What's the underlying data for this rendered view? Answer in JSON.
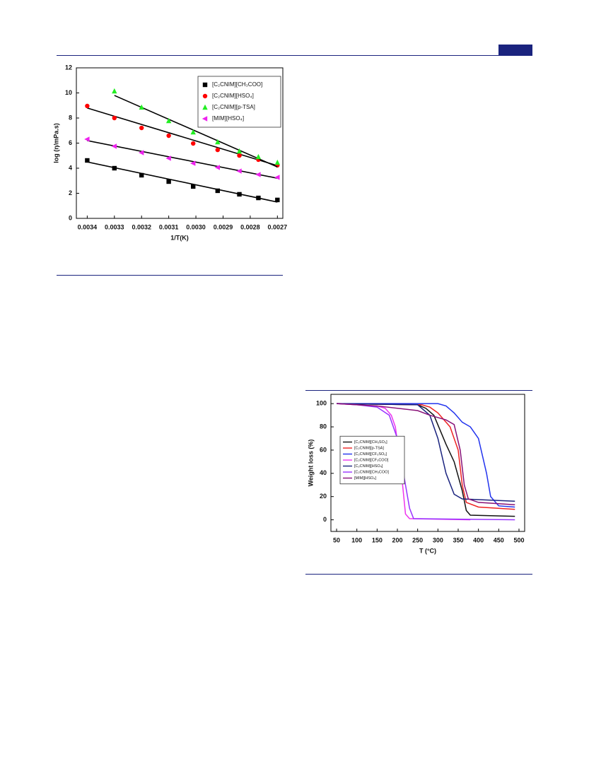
{
  "chart_data": [
    {
      "type": "scatter",
      "x_label": "1/T(K)",
      "y_label": "log (η/mPa.s)",
      "xlim": [
        0.00344,
        0.00268
      ],
      "ylim": [
        0,
        12
      ],
      "xticks": [
        0.0034,
        0.0033,
        0.0032,
        0.0031,
        {
          "value": 0.003,
          "label": "0.0030"
        },
        0.0029,
        0.0028,
        0.0027
      ],
      "yticks": [
        0,
        2,
        4,
        6,
        8,
        10,
        12
      ],
      "legend": "upper right",
      "x": [
        0.0034,
        0.0033,
        0.0032,
        0.0031,
        0.00301,
        0.00292,
        0.00284,
        0.00277,
        0.0027
      ],
      "series": [
        {
          "name": "[C₂CNIM][CH₃COO]",
          "color": "#000000",
          "marker": "square",
          "values": [
            4.62,
            4.0,
            3.44,
            2.93,
            2.54,
            2.2,
            1.92,
            1.63,
            1.47
          ],
          "fit": {
            "x": [
              0.0034,
              0.0027
            ],
            "values": [
              4.5,
              1.3
            ]
          }
        },
        {
          "name": "[C₂CNIM][HSO₄]",
          "color": "#ff0000",
          "marker": "circle",
          "values": [
            8.96,
            8.0,
            7.21,
            6.59,
            5.97,
            5.46,
            5.01,
            4.68,
            4.23
          ],
          "fit": {
            "x": [
              0.0034,
              0.0027
            ],
            "values": [
              8.8,
              4.2
            ]
          }
        },
        {
          "name": "[C₂CNIM][p-TSA]",
          "color": "#22ee22",
          "marker": "triangle-up",
          "values": [
            null,
            10.14,
            8.85,
            7.77,
            6.87,
            6.08,
            5.35,
            4.9,
            4.45
          ],
          "fit": {
            "x": [
              0.0033,
              0.0027
            ],
            "values": [
              9.8,
              4.1
            ]
          }
        },
        {
          "name": "[MIM][HSO₄]",
          "color": "#ee22ee",
          "marker": "triangle-left",
          "values": [
            6.31,
            5.75,
            5.24,
            4.79,
            4.39,
            4.06,
            3.77,
            3.49,
            3.27
          ],
          "fit": {
            "x": [
              0.0034,
              0.0027
            ],
            "values": [
              6.2,
              3.2
            ]
          }
        }
      ]
    },
    {
      "type": "line",
      "x_label": "T (°C)",
      "y_label": "Weight loss (%)",
      "xlim": [
        36,
        514
      ],
      "ylim": [
        -10,
        108
      ],
      "xticks": [
        50,
        100,
        150,
        200,
        250,
        300,
        350,
        400,
        450,
        500
      ],
      "yticks": [
        0,
        20,
        40,
        60,
        80,
        100
      ],
      "legend": "center left",
      "series": [
        {
          "name": "[C₂CNIM][CH₃SO₃]",
          "color": "#111111",
          "x": [
            50,
            250,
            270,
            290,
            320,
            340,
            360,
            370,
            380,
            490
          ],
          "values": [
            100,
            99,
            96,
            90,
            65,
            50,
            25,
            8,
            4,
            3
          ]
        },
        {
          "name": "[C₂CNIM][p-TSA]",
          "color": "#ee2222",
          "x": [
            50,
            260,
            280,
            300,
            330,
            350,
            360,
            370,
            400,
            490
          ],
          "values": [
            100,
            99,
            97,
            92,
            80,
            60,
            30,
            15,
            11,
            9
          ]
        },
        {
          "name": "[C₂CNIM][CF₃SO₃]",
          "color": "#2233ee",
          "x": [
            50,
            300,
            320,
            340,
            360,
            380,
            400,
            420,
            430,
            450,
            490
          ],
          "values": [
            100,
            100,
            98,
            92,
            84,
            80,
            70,
            40,
            20,
            12,
            11
          ]
        },
        {
          "name": "[C₂CNIM][CF₃COO]",
          "color": "#ee33ee",
          "x": [
            50,
            150,
            170,
            185,
            195,
            205,
            210,
            220,
            230,
            380
          ],
          "values": [
            100,
            98,
            96,
            90,
            80,
            55,
            40,
            5,
            1,
            0
          ]
        },
        {
          "name": "[C₂CNIM][HSO₄]",
          "color": "#1a237e",
          "x": [
            50,
            250,
            280,
            300,
            320,
            340,
            360,
            490
          ],
          "values": [
            100,
            99,
            90,
            70,
            40,
            22,
            18,
            16
          ]
        },
        {
          "name": "[C₂CNIM][CH₃COO]",
          "color": "#9933ff",
          "x": [
            50,
            100,
            150,
            180,
            200,
            215,
            230,
            240,
            490
          ],
          "values": [
            100,
            99,
            97,
            90,
            70,
            40,
            10,
            1,
            0
          ]
        },
        {
          "name": "[MIM][HSO₄]",
          "color": "#881177",
          "x": [
            50,
            150,
            250,
            280,
            320,
            340,
            355,
            365,
            375,
            400,
            490
          ],
          "values": [
            100,
            98,
            94,
            90,
            86,
            82,
            60,
            30,
            18,
            15,
            13
          ]
        }
      ]
    }
  ]
}
